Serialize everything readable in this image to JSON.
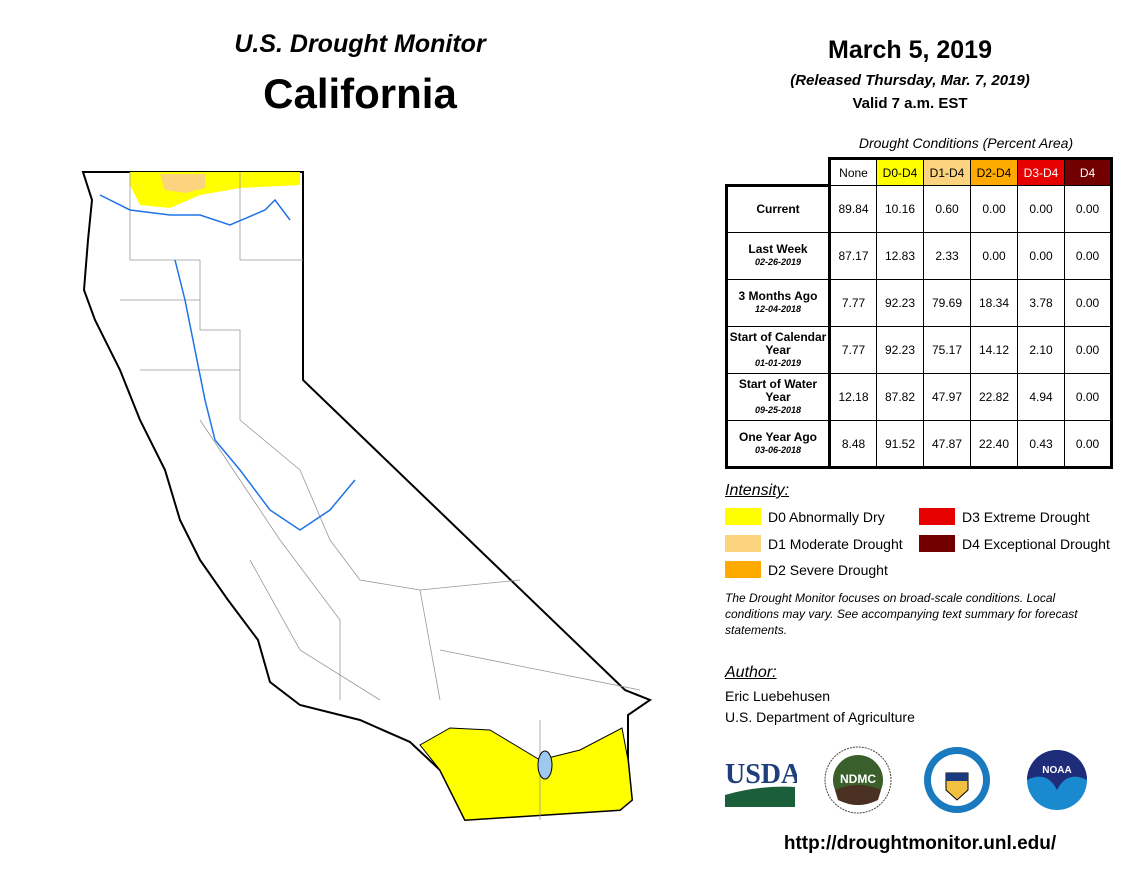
{
  "header": {
    "map_title": "U.S. Drought Monitor",
    "state": "California",
    "date": "March 5, 2019",
    "released": "(Released Thursday, Mar. 7, 2019)",
    "valid": "Valid 7 a.m. EST"
  },
  "table": {
    "caption": "Drought Conditions (Percent Area)",
    "columns": [
      {
        "label": "None",
        "bg": "#ffffff",
        "fg": "#000000"
      },
      {
        "label": "D0-D4",
        "bg": "#ffff00",
        "fg": "#000000"
      },
      {
        "label": "D1-D4",
        "bg": "#fcd37f",
        "fg": "#000000"
      },
      {
        "label": "D2-D4",
        "bg": "#ffaa00",
        "fg": "#000000"
      },
      {
        "label": "D3-D4",
        "bg": "#e60000",
        "fg": "#ffffff"
      },
      {
        "label": "D4",
        "bg": "#730000",
        "fg": "#ffffff"
      }
    ],
    "rows": [
      {
        "label": "Current",
        "date": "",
        "values": [
          "89.84",
          "10.16",
          "0.60",
          "0.00",
          "0.00",
          "0.00"
        ]
      },
      {
        "label": "Last Week",
        "date": "02-26-2019",
        "values": [
          "87.17",
          "12.83",
          "2.33",
          "0.00",
          "0.00",
          "0.00"
        ]
      },
      {
        "label": "3 Months Ago",
        "date": "12-04-2018",
        "values": [
          "7.77",
          "92.23",
          "79.69",
          "18.34",
          "3.78",
          "0.00"
        ]
      },
      {
        "label": "Start of Calendar Year",
        "date": "01-01-2019",
        "values": [
          "7.77",
          "92.23",
          "75.17",
          "14.12",
          "2.10",
          "0.00"
        ]
      },
      {
        "label": "Start of Water Year",
        "date": "09-25-2018",
        "values": [
          "12.18",
          "87.82",
          "47.97",
          "22.82",
          "4.94",
          "0.00"
        ]
      },
      {
        "label": "One Year Ago",
        "date": "03-06-2018",
        "values": [
          "8.48",
          "91.52",
          "47.87",
          "22.40",
          "0.43",
          "0.00"
        ]
      }
    ]
  },
  "legend": {
    "title": "Intensity:",
    "items": [
      {
        "label": "D0 Abnormally Dry",
        "color": "#ffff00"
      },
      {
        "label": "D1 Moderate Drought",
        "color": "#fcd37f"
      },
      {
        "label": "D2 Severe Drought",
        "color": "#ffaa00"
      },
      {
        "label": "D3 Extreme Drought",
        "color": "#e60000"
      },
      {
        "label": "D4 Exceptional Drought",
        "color": "#730000"
      }
    ]
  },
  "note": "The Drought Monitor focuses on broad-scale conditions. Local conditions may vary. See accompanying text summary for forecast statements.",
  "author": {
    "title": "Author:",
    "name": "Eric Luebehusen",
    "org": "U.S. Department of Agriculture"
  },
  "logos": {
    "usda": "USDA",
    "ndmc": "NDMC",
    "doc": "Department of Commerce",
    "noaa": "NOAA"
  },
  "url": "http://droughtmonitor.unl.edu/"
}
